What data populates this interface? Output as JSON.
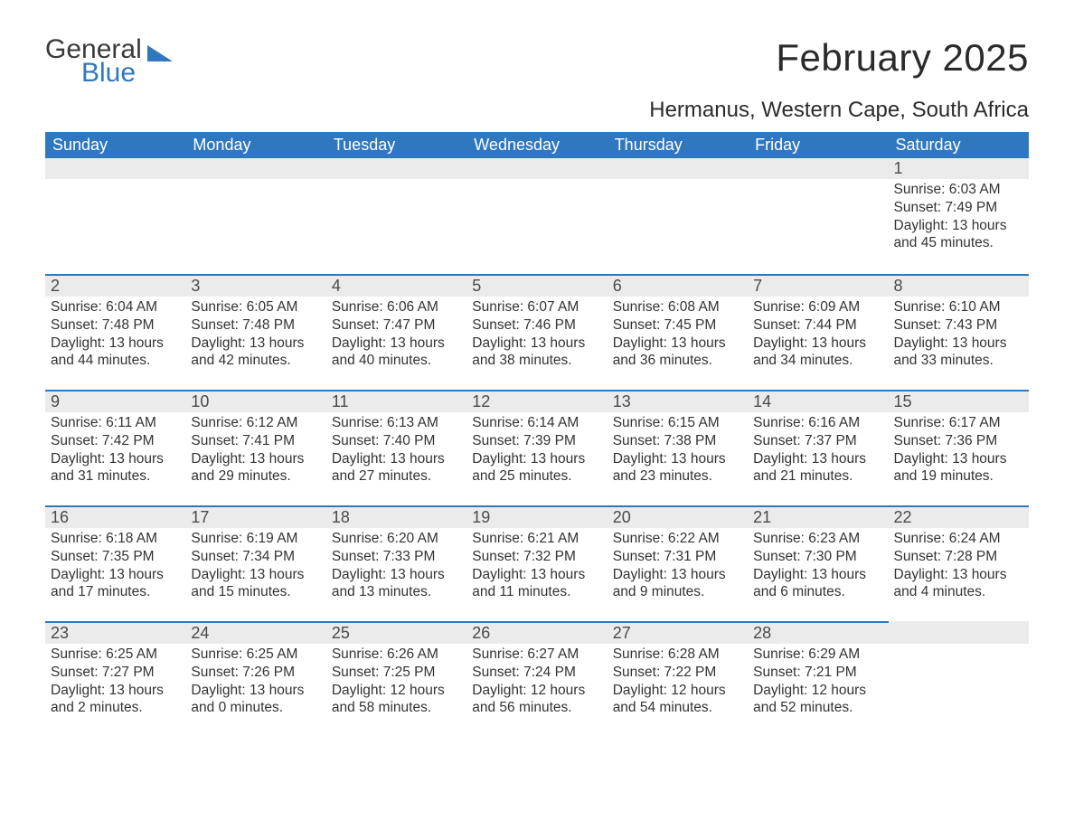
{
  "brand": {
    "name1": "General",
    "name2": "Blue",
    "accent_color": "#2f78bf",
    "text_color": "#3a3a3a"
  },
  "header": {
    "month_title": "February 2025",
    "location": "Hermanus, Western Cape, South Africa"
  },
  "calendar": {
    "header_bg": "#2f78bf",
    "header_fg": "#ffffff",
    "daynum_bg": "#ebebeb",
    "row_border_color": "#2f78bf",
    "body_text_color": "#333333",
    "columns": [
      "Sunday",
      "Monday",
      "Tuesday",
      "Wednesday",
      "Thursday",
      "Friday",
      "Saturday"
    ],
    "weeks": [
      [
        null,
        null,
        null,
        null,
        null,
        null,
        {
          "n": "1",
          "sunrise": "6:03 AM",
          "sunset": "7:49 PM",
          "daylight": "13 hours and 45 minutes."
        }
      ],
      [
        {
          "n": "2",
          "sunrise": "6:04 AM",
          "sunset": "7:48 PM",
          "daylight": "13 hours and 44 minutes."
        },
        {
          "n": "3",
          "sunrise": "6:05 AM",
          "sunset": "7:48 PM",
          "daylight": "13 hours and 42 minutes."
        },
        {
          "n": "4",
          "sunrise": "6:06 AM",
          "sunset": "7:47 PM",
          "daylight": "13 hours and 40 minutes."
        },
        {
          "n": "5",
          "sunrise": "6:07 AM",
          "sunset": "7:46 PM",
          "daylight": "13 hours and 38 minutes."
        },
        {
          "n": "6",
          "sunrise": "6:08 AM",
          "sunset": "7:45 PM",
          "daylight": "13 hours and 36 minutes."
        },
        {
          "n": "7",
          "sunrise": "6:09 AM",
          "sunset": "7:44 PM",
          "daylight": "13 hours and 34 minutes."
        },
        {
          "n": "8",
          "sunrise": "6:10 AM",
          "sunset": "7:43 PM",
          "daylight": "13 hours and 33 minutes."
        }
      ],
      [
        {
          "n": "9",
          "sunrise": "6:11 AM",
          "sunset": "7:42 PM",
          "daylight": "13 hours and 31 minutes."
        },
        {
          "n": "10",
          "sunrise": "6:12 AM",
          "sunset": "7:41 PM",
          "daylight": "13 hours and 29 minutes."
        },
        {
          "n": "11",
          "sunrise": "6:13 AM",
          "sunset": "7:40 PM",
          "daylight": "13 hours and 27 minutes."
        },
        {
          "n": "12",
          "sunrise": "6:14 AM",
          "sunset": "7:39 PM",
          "daylight": "13 hours and 25 minutes."
        },
        {
          "n": "13",
          "sunrise": "6:15 AM",
          "sunset": "7:38 PM",
          "daylight": "13 hours and 23 minutes."
        },
        {
          "n": "14",
          "sunrise": "6:16 AM",
          "sunset": "7:37 PM",
          "daylight": "13 hours and 21 minutes."
        },
        {
          "n": "15",
          "sunrise": "6:17 AM",
          "sunset": "7:36 PM",
          "daylight": "13 hours and 19 minutes."
        }
      ],
      [
        {
          "n": "16",
          "sunrise": "6:18 AM",
          "sunset": "7:35 PM",
          "daylight": "13 hours and 17 minutes."
        },
        {
          "n": "17",
          "sunrise": "6:19 AM",
          "sunset": "7:34 PM",
          "daylight": "13 hours and 15 minutes."
        },
        {
          "n": "18",
          "sunrise": "6:20 AM",
          "sunset": "7:33 PM",
          "daylight": "13 hours and 13 minutes."
        },
        {
          "n": "19",
          "sunrise": "6:21 AM",
          "sunset": "7:32 PM",
          "daylight": "13 hours and 11 minutes."
        },
        {
          "n": "20",
          "sunrise": "6:22 AM",
          "sunset": "7:31 PM",
          "daylight": "13 hours and 9 minutes."
        },
        {
          "n": "21",
          "sunrise": "6:23 AM",
          "sunset": "7:30 PM",
          "daylight": "13 hours and 6 minutes."
        },
        {
          "n": "22",
          "sunrise": "6:24 AM",
          "sunset": "7:28 PM",
          "daylight": "13 hours and 4 minutes."
        }
      ],
      [
        {
          "n": "23",
          "sunrise": "6:25 AM",
          "sunset": "7:27 PM",
          "daylight": "13 hours and 2 minutes."
        },
        {
          "n": "24",
          "sunrise": "6:25 AM",
          "sunset": "7:26 PM",
          "daylight": "13 hours and 0 minutes."
        },
        {
          "n": "25",
          "sunrise": "6:26 AM",
          "sunset": "7:25 PM",
          "daylight": "12 hours and 58 minutes."
        },
        {
          "n": "26",
          "sunrise": "6:27 AM",
          "sunset": "7:24 PM",
          "daylight": "12 hours and 56 minutes."
        },
        {
          "n": "27",
          "sunrise": "6:28 AM",
          "sunset": "7:22 PM",
          "daylight": "12 hours and 54 minutes."
        },
        {
          "n": "28",
          "sunrise": "6:29 AM",
          "sunset": "7:21 PM",
          "daylight": "12 hours and 52 minutes."
        },
        null
      ]
    ],
    "labels": {
      "sunrise": "Sunrise: ",
      "sunset": "Sunset: ",
      "daylight": "Daylight: "
    }
  }
}
